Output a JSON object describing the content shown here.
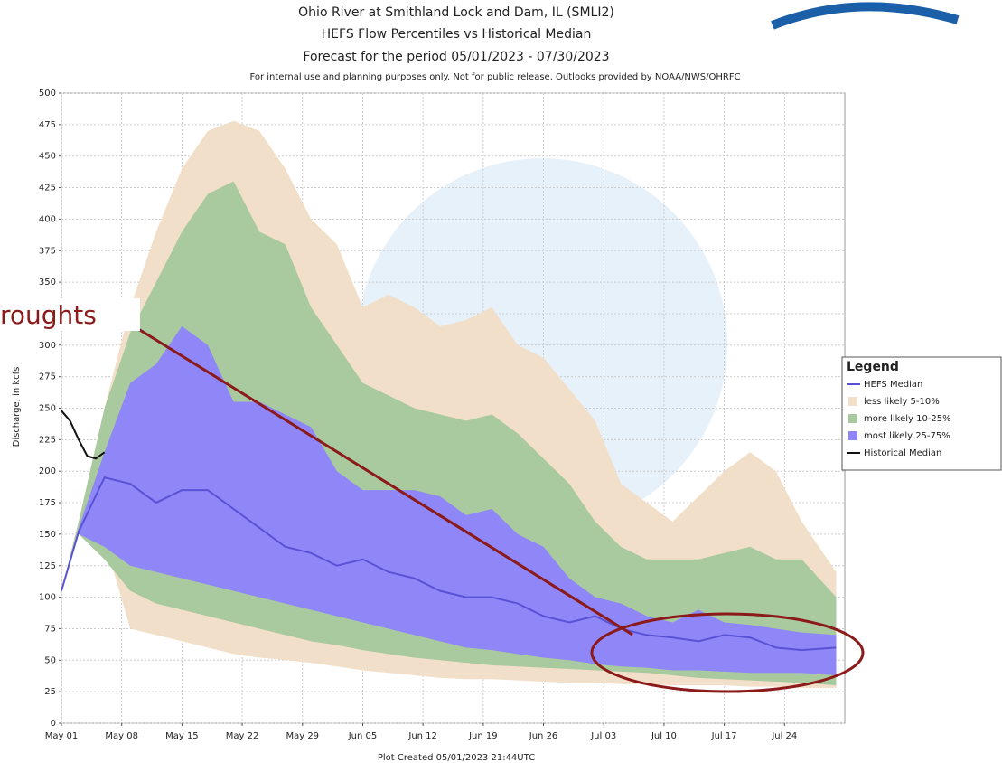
{
  "chart_data": {
    "type": "area-band",
    "title": "Ohio River at Smithland Lock and Dam, IL (SMLI2)",
    "subtitle": "HEFS Flow Percentiles vs Historical Median",
    "period": "Forecast for the period 05/01/2023  - 07/30/2023",
    "note": "For internal use and planning purposes only. Not for public release.  Outlooks provided by NOAA/NWS/OHRFC",
    "footer": "Plot Created 05/01/2023 21:44UTC",
    "y_label": "Discharge, in kcfs",
    "legend_title": "Legend",
    "annotation": "roughts",
    "x": [
      "2023-05-01",
      "2023-05-03",
      "2023-05-06",
      "2023-05-09",
      "2023-05-12",
      "2023-05-15",
      "2023-05-18",
      "2023-05-21",
      "2023-05-24",
      "2023-05-27",
      "2023-05-30",
      "2023-06-02",
      "2023-06-05",
      "2023-06-08",
      "2023-06-11",
      "2023-06-14",
      "2023-06-17",
      "2023-06-20",
      "2023-06-23",
      "2023-06-26",
      "2023-06-29",
      "2023-07-02",
      "2023-07-05",
      "2023-07-08",
      "2023-07-11",
      "2023-07-14",
      "2023-07-17",
      "2023-07-20",
      "2023-07-23",
      "2023-07-26",
      "2023-07-30"
    ],
    "series": [
      {
        "name": "HEFS Median",
        "color": "#5a52d6",
        "kind": "line",
        "values": [
          105,
          152,
          195,
          190,
          175,
          185,
          185,
          170,
          155,
          140,
          135,
          125,
          130,
          120,
          115,
          105,
          100,
          100,
          95,
          85,
          80,
          85,
          75,
          70,
          68,
          65,
          70,
          68,
          60,
          58,
          60
        ]
      },
      {
        "name": "less likely 5-10%",
        "color": "#f2dfc9",
        "kind": "band",
        "high": [
          105,
          160,
          250,
          330,
          390,
          440,
          470,
          478,
          470,
          440,
          400,
          380,
          330,
          340,
          330,
          315,
          320,
          330,
          300,
          290,
          265,
          240,
          190,
          175,
          160,
          180,
          200,
          215,
          200,
          160,
          120
        ],
        "low": [
          105,
          150,
          145,
          75,
          70,
          65,
          60,
          55,
          52,
          50,
          48,
          45,
          42,
          40,
          38,
          36,
          35,
          35,
          34,
          33,
          32,
          32,
          31,
          31,
          30,
          30,
          30,
          29,
          29,
          28,
          28
        ]
      },
      {
        "name": "more likely 10-25%",
        "color": "#a9c99f",
        "kind": "band",
        "high": [
          105,
          160,
          250,
          310,
          350,
          390,
          420,
          430,
          390,
          380,
          330,
          300,
          270,
          260,
          250,
          245,
          240,
          245,
          230,
          210,
          190,
          160,
          140,
          130,
          130,
          130,
          135,
          140,
          130,
          130,
          100
        ],
        "low": [
          105,
          150,
          130,
          105,
          95,
          90,
          85,
          80,
          75,
          70,
          65,
          62,
          58,
          55,
          52,
          50,
          48,
          46,
          45,
          44,
          43,
          42,
          41,
          40,
          38,
          36,
          35,
          34,
          33,
          32,
          30
        ]
      },
      {
        "name": "most likely 25-75%",
        "color": "#8f86f7",
        "kind": "band",
        "high": [
          105,
          155,
          215,
          270,
          285,
          315,
          300,
          255,
          255,
          245,
          235,
          200,
          185,
          185,
          185,
          180,
          165,
          170,
          150,
          140,
          115,
          100,
          95,
          85,
          80,
          90,
          80,
          78,
          75,
          72,
          70
        ],
        "low": [
          105,
          150,
          140,
          125,
          120,
          115,
          110,
          105,
          100,
          95,
          90,
          85,
          80,
          75,
          70,
          65,
          60,
          58,
          55,
          52,
          50,
          47,
          45,
          44,
          42,
          42,
          41,
          40,
          40,
          40,
          38
        ]
      },
      {
        "name": "Historical Median",
        "color": "#111111",
        "kind": "line",
        "x": [
          "2023-05-01",
          "2023-05-02",
          "2023-05-03",
          "2023-05-04",
          "2023-05-05",
          "2023-05-06"
        ],
        "values": [
          248,
          240,
          225,
          212,
          210,
          215
        ]
      }
    ],
    "xlim": [
      "2023-05-01",
      "2023-07-31"
    ],
    "xticks": [
      {
        "value": "2023-05-01",
        "label": "May 01"
      },
      {
        "value": "2023-05-08",
        "label": "May 08"
      },
      {
        "value": "2023-05-15",
        "label": "May 15"
      },
      {
        "value": "2023-05-22",
        "label": "May 22"
      },
      {
        "value": "2023-05-29",
        "label": "May 29"
      },
      {
        "value": "2023-06-05",
        "label": "Jun 05"
      },
      {
        "value": "2023-06-12",
        "label": "Jun 12"
      },
      {
        "value": "2023-06-19",
        "label": "Jun 19"
      },
      {
        "value": "2023-06-26",
        "label": "Jun 26"
      },
      {
        "value": "2023-07-03",
        "label": "Jul 03"
      },
      {
        "value": "2023-07-10",
        "label": "Jul 10"
      },
      {
        "value": "2023-07-17",
        "label": "Jul 17"
      },
      {
        "value": "2023-07-24",
        "label": "Jul 24"
      }
    ],
    "ylim": [
      0,
      500
    ],
    "yticks": [
      0,
      25,
      50,
      75,
      100,
      125,
      150,
      175,
      200,
      225,
      250,
      275,
      300,
      325,
      350,
      375,
      400,
      425,
      450,
      475,
      500
    ],
    "grid": true
  }
}
